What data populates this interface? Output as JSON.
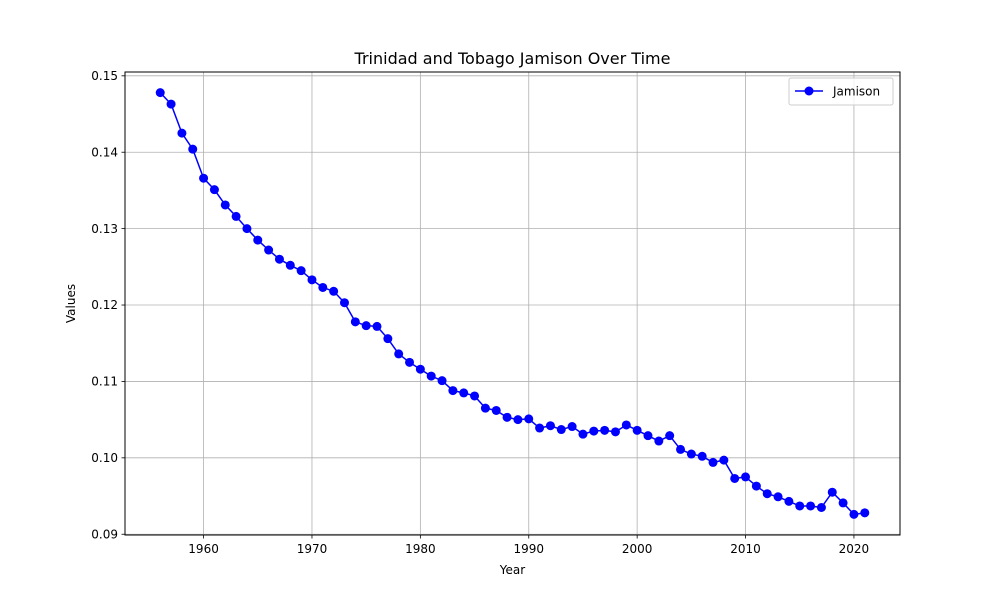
{
  "chart_data": {
    "type": "line",
    "title": "Trinidad and Tobago Jamison Over Time",
    "xlabel": "Year",
    "ylabel": "Values",
    "xlim": [
      1952.75,
      2024.25
    ],
    "ylim": [
      0.0899,
      0.1505
    ],
    "x_ticks": [
      1960,
      1970,
      1980,
      1990,
      2000,
      2010,
      2020
    ],
    "y_ticks": [
      0.09,
      0.1,
      0.11,
      0.12,
      0.13,
      0.14,
      0.15
    ],
    "y_tick_labels": [
      "0.09",
      "0.10",
      "0.11",
      "0.12",
      "0.13",
      "0.14",
      "0.15"
    ],
    "grid": true,
    "legend_position": "upper right",
    "series": [
      {
        "name": "Jamison",
        "color": "#0000ff",
        "marker": "circle",
        "x": [
          1956,
          1957,
          1958,
          1959,
          1960,
          1961,
          1962,
          1963,
          1964,
          1965,
          1966,
          1967,
          1968,
          1969,
          1970,
          1971,
          1972,
          1973,
          1974,
          1975,
          1976,
          1977,
          1978,
          1979,
          1980,
          1981,
          1982,
          1983,
          1984,
          1985,
          1986,
          1987,
          1988,
          1989,
          1990,
          1991,
          1992,
          1993,
          1994,
          1995,
          1996,
          1997,
          1998,
          1999,
          2000,
          2001,
          2002,
          2003,
          2004,
          2005,
          2006,
          2007,
          2008,
          2009,
          2010,
          2011,
          2012,
          2013,
          2014,
          2015,
          2016,
          2017,
          2018,
          2019,
          2020,
          2021
        ],
        "values": [
          0.1478,
          0.1463,
          0.1425,
          0.1404,
          0.1366,
          0.1351,
          0.1331,
          0.1316,
          0.13,
          0.1285,
          0.1272,
          0.126,
          0.1252,
          0.1245,
          0.1233,
          0.1223,
          0.1218,
          0.1203,
          0.1178,
          0.1173,
          0.1172,
          0.1156,
          0.1136,
          0.1125,
          0.1116,
          0.1107,
          0.1101,
          0.1088,
          0.1085,
          0.1081,
          0.1065,
          0.1062,
          0.1053,
          0.105,
          0.1051,
          0.1039,
          0.1042,
          0.1037,
          0.1041,
          0.1031,
          0.1035,
          0.1036,
          0.1034,
          0.1043,
          0.1036,
          0.1029,
          0.1022,
          0.1029,
          0.1011,
          0.1005,
          0.1002,
          0.0994,
          0.0997,
          0.0973,
          0.0975,
          0.0963,
          0.0953,
          0.0949,
          0.0943,
          0.0937,
          0.0937,
          0.0935,
          0.0955,
          0.0941,
          0.0926,
          0.0928
        ]
      }
    ]
  }
}
